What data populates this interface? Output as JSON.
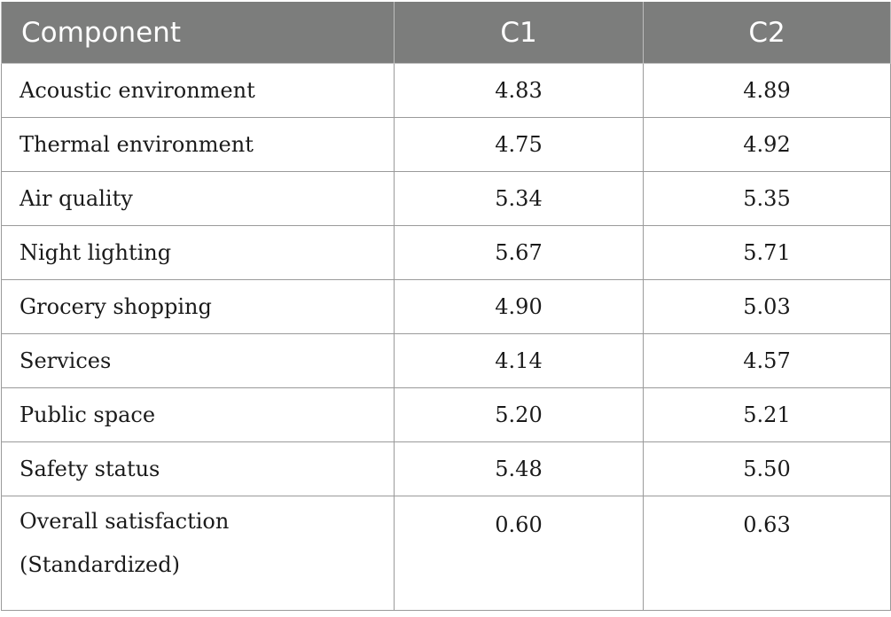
{
  "table": {
    "headers": [
      "Component",
      "C1",
      "C2"
    ],
    "rows": [
      {
        "component": "Acoustic environment",
        "c1": "4.83",
        "c2": "4.89"
      },
      {
        "component": "Thermal environment",
        "c1": "4.75",
        "c2": "4.92"
      },
      {
        "component": "Air quality",
        "c1": "5.34",
        "c2": "5.35"
      },
      {
        "component": "Night lighting",
        "c1": "5.67",
        "c2": "5.71"
      },
      {
        "component": "Grocery shopping",
        "c1": "4.90",
        "c2": "5.03"
      },
      {
        "component": "Services",
        "c1": "4.14",
        "c2": "4.57"
      },
      {
        "component": "Public space",
        "c1": "5.20",
        "c2": "5.21"
      },
      {
        "component": "Safety status",
        "c1": "5.48",
        "c2": "5.50"
      },
      {
        "component_line1": "Overall satisfaction",
        "component_line2": "(Standardized)",
        "c1": "0.60",
        "c2": "0.63"
      }
    ]
  }
}
